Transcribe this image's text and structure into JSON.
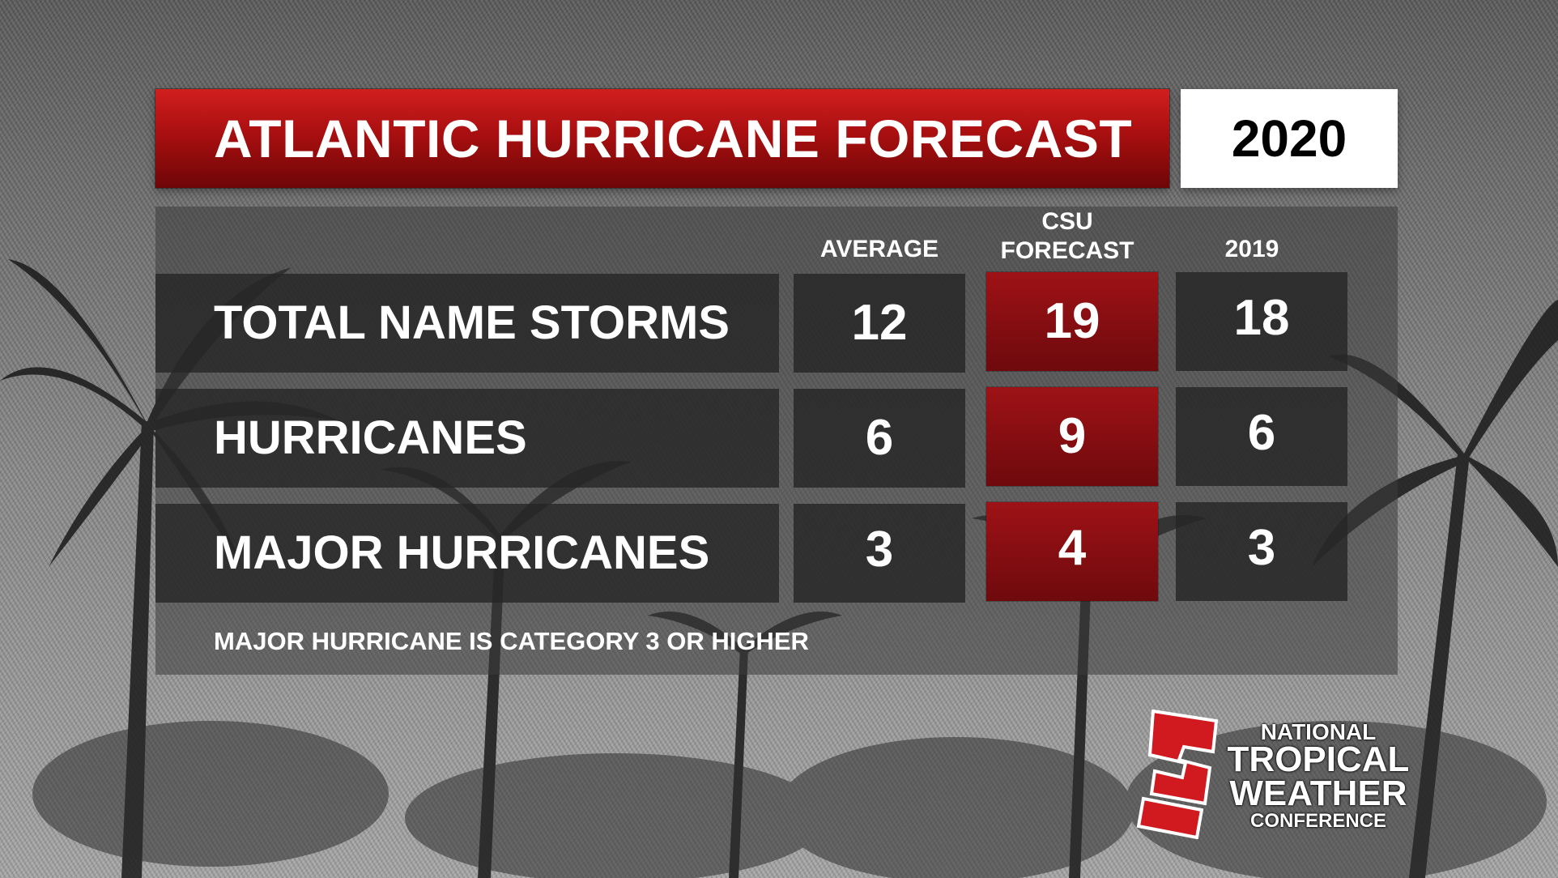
{
  "title": "ATLANTIC HURRICANE FORECAST",
  "year": "2020",
  "columns": {
    "average": "AVERAGE",
    "csu": "CSU",
    "forecast": "FORECAST",
    "prev_year": "2019"
  },
  "rows": [
    {
      "label": "TOTAL NAME STORMS",
      "average": "12",
      "csu": "19",
      "prev": "18"
    },
    {
      "label": "HURRICANES",
      "average": "6",
      "csu": "9",
      "prev": "6"
    },
    {
      "label": "MAJOR HURRICANES",
      "average": "3",
      "csu": "4",
      "prev": "3"
    }
  ],
  "footnote": "MAJOR HURRICANE IS CATEGORY 3 OR HIGHER",
  "logo": {
    "line1": "NATIONAL",
    "line2": "TROPICAL",
    "line3": "WEATHER",
    "line4": "CONFERENCE"
  },
  "colors": {
    "accent_red": "#a90f10",
    "dark_cell": "#262626",
    "white": "#ffffff"
  }
}
